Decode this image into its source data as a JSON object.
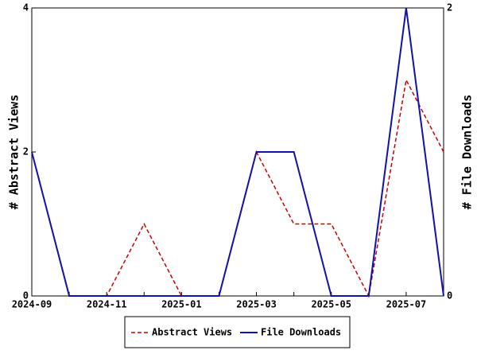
{
  "chart_data": {
    "type": "line",
    "categories": [
      "2024-09",
      null,
      "2024-11",
      null,
      "2025-01",
      null,
      "2025-03",
      null,
      "2025-05",
      null,
      "2025-07",
      null
    ],
    "series": [
      {
        "name": "Abstract Views",
        "color": "#cc0000",
        "dash": true,
        "values": [
          2,
          0,
          0,
          1,
          0,
          0,
          2,
          1,
          1,
          0,
          3,
          2
        ]
      },
      {
        "name": "File Downloads",
        "color": "#1010aa",
        "axis": "y2",
        "values": [
          1,
          0,
          0,
          0,
          0,
          0,
          1,
          1,
          0,
          0,
          2,
          0
        ]
      }
    ],
    "ylabel": "# Abstract Views",
    "y2label": "# File Downloads",
    "ylim": [
      0,
      4
    ],
    "yticks": [
      0,
      2,
      4
    ],
    "y2lim": [
      0,
      2
    ],
    "y2ticks": [
      0,
      2
    ],
    "legend": "bottom"
  }
}
